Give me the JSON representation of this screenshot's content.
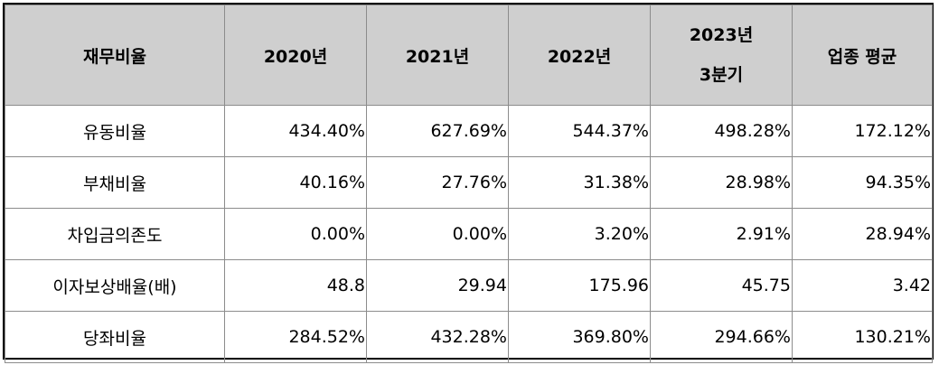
{
  "header": {
    "col_label": "재무비율",
    "y2020": "2020년",
    "y2021": "2021년",
    "y2022": "2022년",
    "y2023_line1": "2023년",
    "y2023_line2": "3분기",
    "industry_avg": "업종 평균"
  },
  "rows": [
    {
      "label": "유동비율",
      "v2020": "434.40%",
      "v2021": "627.69%",
      "v2022": "544.37%",
      "v2023q3": "498.28%",
      "avg": "172.12%"
    },
    {
      "label": "부채비율",
      "v2020": "40.16%",
      "v2021": "27.76%",
      "v2022": "31.38%",
      "v2023q3": "28.98%",
      "avg": "94.35%"
    },
    {
      "label": "차입금의존도",
      "v2020": "0.00%",
      "v2021": "0.00%",
      "v2022": "3.20%",
      "v2023q3": "2.91%",
      "avg": "28.94%"
    },
    {
      "label": "이자보상배율(배)",
      "v2020": "48.8",
      "v2021": "29.94",
      "v2022": "175.96",
      "v2023q3": "45.75",
      "avg": "3.42"
    },
    {
      "label": "당좌비율",
      "v2020": "284.52%",
      "v2021": "432.28%",
      "v2022": "369.80%",
      "v2023q3": "294.66%",
      "avg": "130.21%"
    }
  ]
}
